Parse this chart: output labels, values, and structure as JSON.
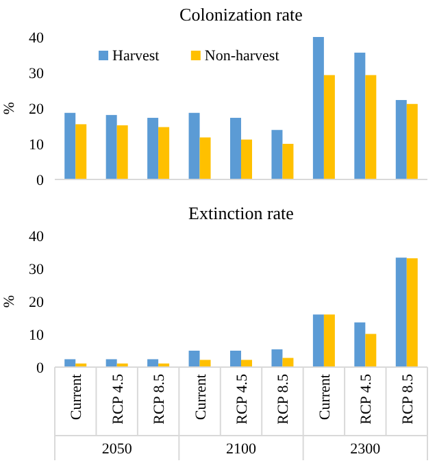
{
  "chart_data": [
    {
      "type": "bar",
      "title": "Colonization rate",
      "ylabel": "%",
      "categories": [
        null,
        null,
        null,
        null,
        null,
        null,
        null,
        null,
        null
      ],
      "series": [
        {
          "name": "Harvest",
          "color": "#5b9bd5",
          "values": [
            18.7,
            18.1,
            17.3,
            18.7,
            17.3,
            13.9,
            40.0,
            35.6,
            22.3
          ]
        },
        {
          "name": "Non-harvest",
          "color": "#ffc000",
          "values": [
            15.5,
            15.2,
            14.7,
            11.8,
            11.2,
            10.0,
            29.3,
            29.3,
            21.2
          ]
        }
      ],
      "ylim": [
        0,
        40
      ],
      "yticks": [
        0,
        10,
        20,
        30,
        40
      ],
      "legend": "top left",
      "tick_labels": "y"
    },
    {
      "type": "bar",
      "title": "Extinction rate",
      "ylabel": "%",
      "categories": [
        "Current",
        "RCP 4.5",
        "RCP 8.5",
        "Current",
        "RCP 4.5",
        "RCP 8.5",
        "Current",
        "RCP 4.5",
        "RCP 8.5"
      ],
      "series": [
        {
          "color": "#5b9bd5",
          "values": [
            2.4,
            2.4,
            2.4,
            5.0,
            5.0,
            5.4,
            16.0,
            13.6,
            33.3
          ]
        },
        {
          "color": "#ffc000",
          "values": [
            1.1,
            1.1,
            1.1,
            2.2,
            2.2,
            2.8,
            16.0,
            10.1,
            33.1
          ]
        }
      ],
      "ylim": [
        0,
        40
      ],
      "yticks": [
        0,
        10,
        20,
        30,
        40
      ],
      "annotations": [
        "2050",
        "2100",
        "2300"
      ]
    }
  ]
}
